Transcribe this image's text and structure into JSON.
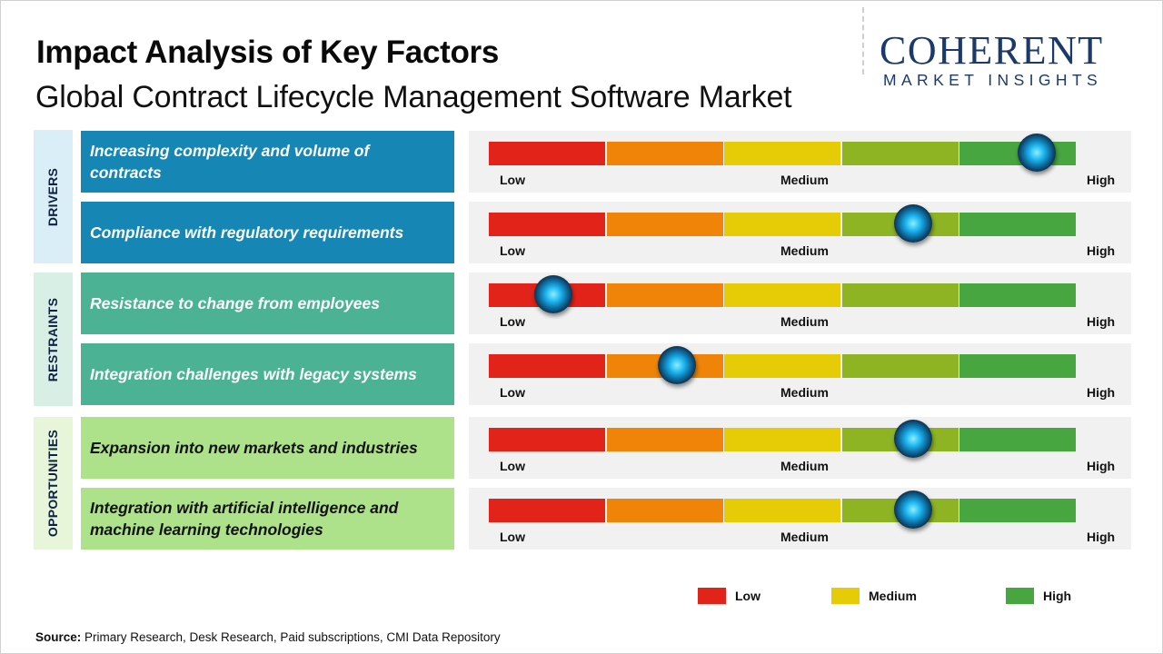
{
  "header": {
    "title": "Impact Analysis of Key Factors",
    "subtitle": "Global Contract Lifecycle Management Software Market"
  },
  "logo": {
    "name": "COHERENT",
    "tagline": "MARKET INSIGHTS"
  },
  "scale_labels": {
    "low": "Low",
    "medium": "Medium",
    "high": "High"
  },
  "colors": {
    "segments": [
      "#e2231a",
      "#ef8408",
      "#e6cc06",
      "#8fb423",
      "#48a641"
    ],
    "drivers_group_bg": "#daeef7",
    "drivers_box": "#1687b4",
    "restraints_group_bg": "#d8efe6",
    "restraints_box": "#4bb293",
    "opportunities_group_bg": "#e7f5d9",
    "opportunities_box": "#aee28a"
  },
  "chart_data": {
    "type": "table",
    "scale": {
      "min": 0,
      "max": 5
    },
    "groups": [
      {
        "name": "DRIVERS",
        "factors": [
          {
            "label": "Increasing complexity and volume of contracts",
            "impact": 4.65
          },
          {
            "label": "Compliance with regulatory requirements",
            "impact": 3.6
          }
        ]
      },
      {
        "name": "RESTRAINTS",
        "factors": [
          {
            "label": "Resistance to change from employees",
            "impact": 0.55
          },
          {
            "label": "Integration challenges with legacy systems",
            "impact": 1.6
          }
        ]
      },
      {
        "name": "OPPORTUNITIES",
        "factors": [
          {
            "label": "Expansion into new markets and industries",
            "impact": 3.6
          },
          {
            "label": "Integration with artificial intelligence and machine learning technologies",
            "impact": 3.6
          }
        ]
      }
    ],
    "legend": [
      {
        "label": "Low",
        "color": "#e2231a"
      },
      {
        "label": "Medium",
        "color": "#e6cc06"
      },
      {
        "label": "High",
        "color": "#48a641"
      }
    ]
  },
  "footer": {
    "source_label": "Source:",
    "source_text": " Primary Research, Desk Research, Paid subscriptions, CMI Data Repository"
  }
}
